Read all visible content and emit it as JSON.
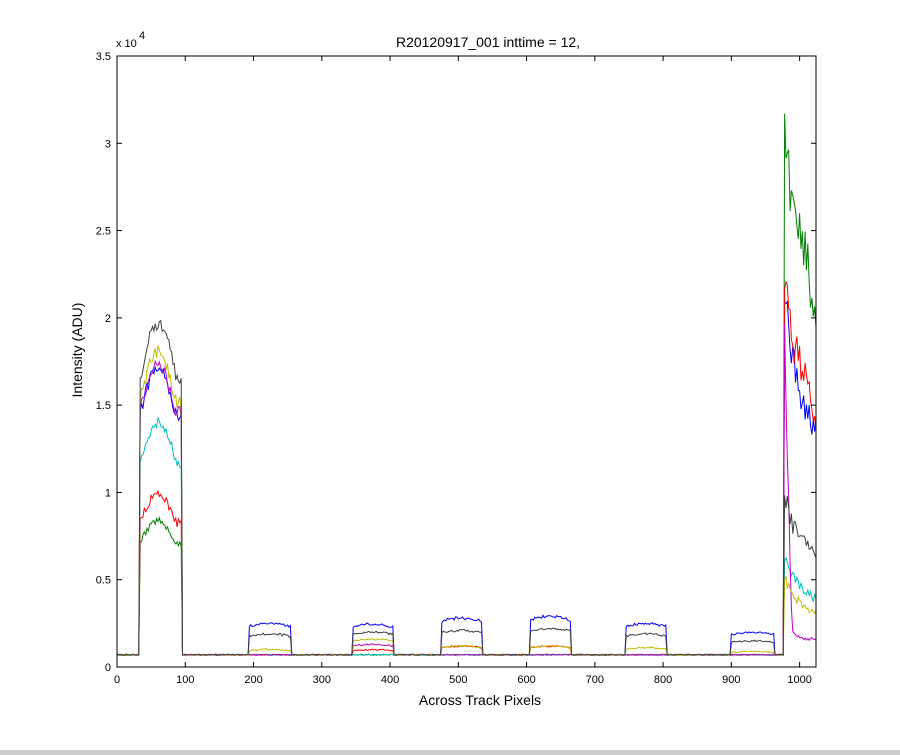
{
  "chart_data": {
    "type": "line",
    "title": "R20120917_001 inttime = 12,",
    "xlabel": "Across Track Pixels",
    "ylabel": "Intensity (ADU)",
    "xlim": [
      0,
      1024
    ],
    "ylim": [
      0,
      35000
    ],
    "y_exponent_label": "x 10",
    "y_exponent_power": "4",
    "x_ticks": [
      0,
      100,
      200,
      300,
      400,
      500,
      600,
      700,
      800,
      900,
      1000
    ],
    "x_tick_labels": [
      "0",
      "100",
      "200",
      "300",
      "400",
      "500",
      "600",
      "700",
      "800",
      "900",
      "1000"
    ],
    "y_ticks": [
      0,
      5000,
      10000,
      15000,
      20000,
      25000,
      30000,
      35000
    ],
    "y_tick_labels": [
      "0",
      "0.5",
      "1",
      "1.5",
      "2",
      "2.5",
      "3",
      "3.5"
    ],
    "grid": false,
    "legend": "none",
    "baseline": 700,
    "plateaus": [
      {
        "x": [
          33,
          95
        ],
        "shape": "rising"
      },
      {
        "x": [
          193,
          255
        ],
        "shape": "flat"
      },
      {
        "x": [
          345,
          405
        ],
        "shape": "flat"
      },
      {
        "x": [
          475,
          535
        ],
        "shape": "flat"
      },
      {
        "x": [
          605,
          665
        ],
        "shape": "flat"
      },
      {
        "x": [
          745,
          805
        ],
        "shape": "flat"
      },
      {
        "x": [
          900,
          962
        ],
        "shape": "flat"
      },
      {
        "x": [
          977,
          1024
        ],
        "shape": "edge"
      }
    ],
    "series": [
      {
        "color": "#0000ff",
        "levels": [
          16300,
          2500,
          2450,
          2800,
          2900,
          2500,
          2000
        ],
        "edge": [
          21300,
          18000,
          15500,
          14500,
          13500
        ]
      },
      {
        "color": "#007f00",
        "levels": [
          8000,
          700,
          700,
          700,
          700,
          700,
          700
        ],
        "edge": [
          31500,
          26500,
          25000,
          23000,
          19000
        ]
      },
      {
        "color": "#ff0000",
        "levels": [
          9400,
          700,
          1000,
          1200,
          1200,
          700,
          700
        ],
        "edge": [
          22800,
          18500,
          17500,
          16000,
          14000
        ]
      },
      {
        "color": "#00bfbf",
        "levels": [
          13300,
          700,
          700,
          700,
          700,
          700,
          700
        ],
        "edge": [
          6400,
          5200,
          4600,
          4200,
          3900
        ]
      },
      {
        "color": "#bf00bf",
        "levels": [
          16500,
          700,
          1300,
          700,
          700,
          700,
          700
        ],
        "edge": [
          20600,
          2000,
          1700,
          1600,
          1600
        ]
      },
      {
        "color": "#bfbf00",
        "levels": [
          17200,
          1000,
          1600,
          1200,
          1200,
          1100,
          900
        ],
        "edge": [
          5200,
          4200,
          3700,
          3300,
          3100
        ]
      },
      {
        "color": "#3f3f3f",
        "levels": [
          18700,
          1900,
          2000,
          2100,
          2200,
          1900,
          1500
        ],
        "edge": [
          10200,
          8200,
          7500,
          7000,
          6600
        ]
      }
    ]
  }
}
